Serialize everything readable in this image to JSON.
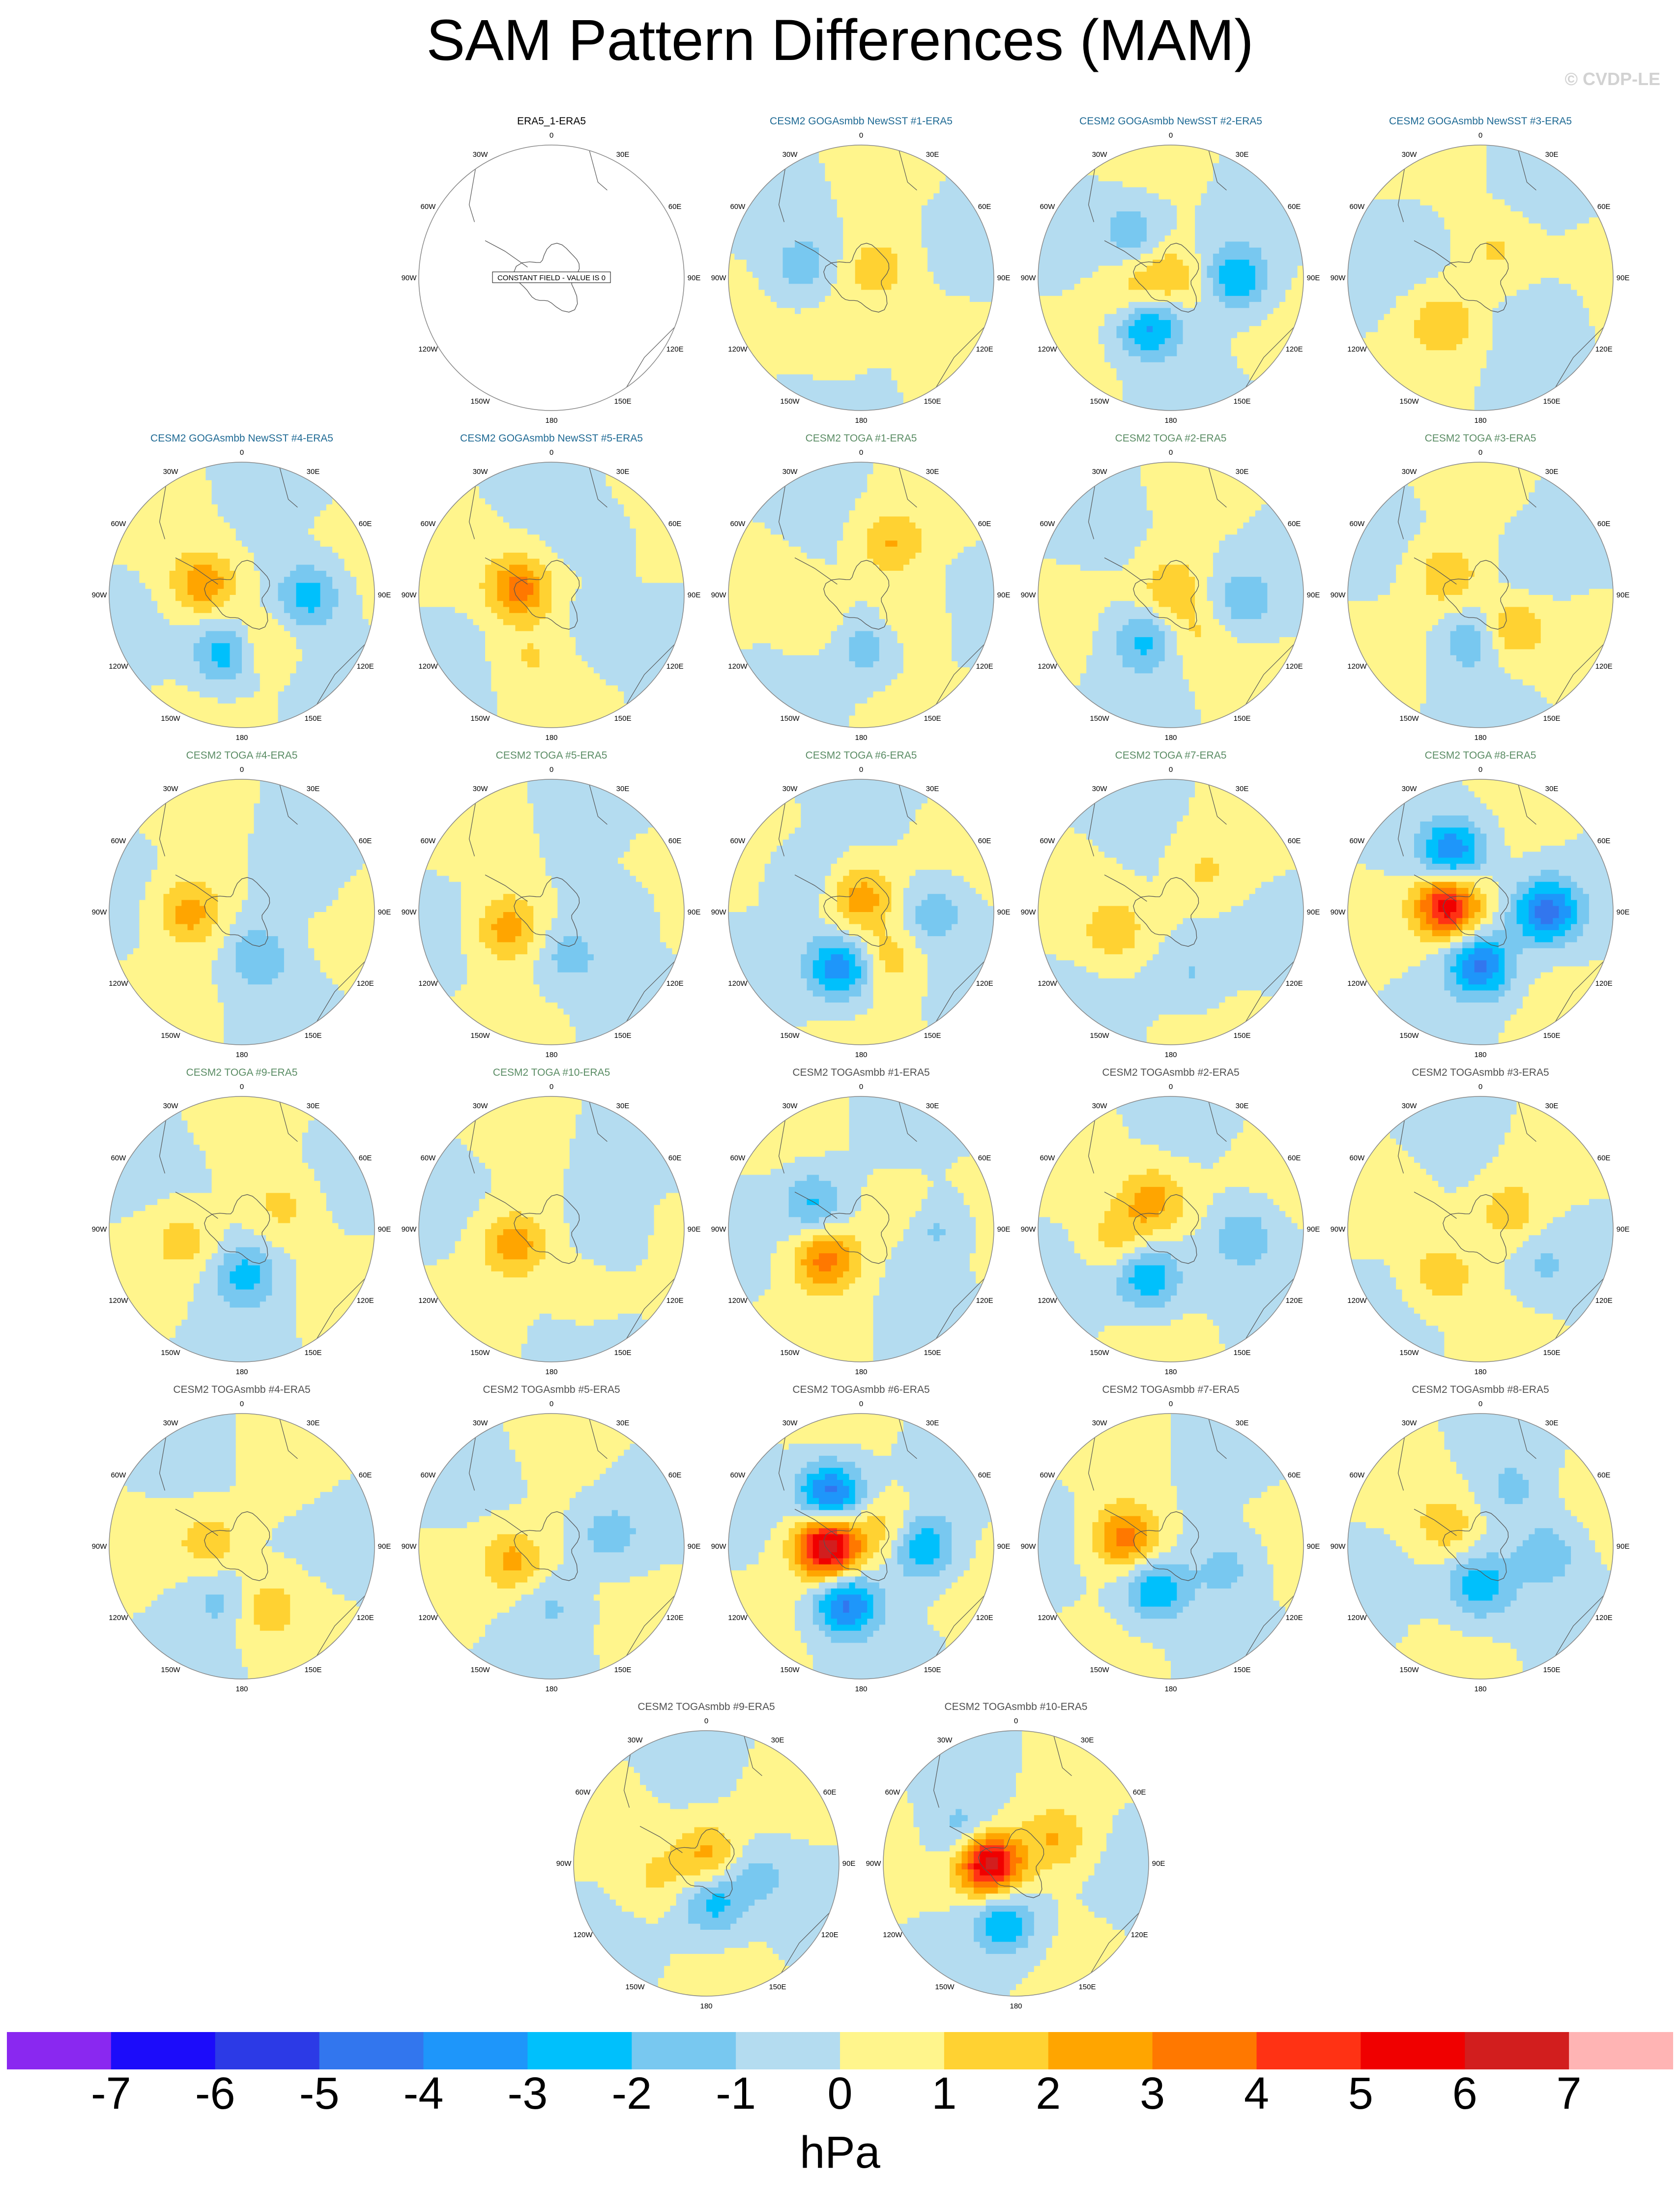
{
  "title": "SAM Pattern Differences (MAM)",
  "credit": "© CVDP-LE",
  "chart_data": {
    "type": "heatmap",
    "projection": "south-polar-stereographic",
    "field": "SAM pattern difference (model minus ERA5), MAM",
    "longitude_labels": [
      "0",
      "30E",
      "60E",
      "90E",
      "120E",
      "150E",
      "180",
      "150W",
      "120W",
      "90W",
      "60W",
      "30W"
    ],
    "panels": [
      {
        "title": "ERA5_1-ERA5",
        "note": "CONSTANT FIELD - VALUE IS 0",
        "color": "#000000",
        "blobs": []
      },
      {
        "title": "CESM2 GOGAsmbb NewSST #1-ERA5",
        "color": "#1f6a94",
        "blobs": [
          {
            "lon": 60,
            "r": 0.2,
            "v": 1.2
          },
          {
            "lon": 200,
            "r": 0.55,
            "v": 0.9
          },
          {
            "lon": 280,
            "r": 0.45,
            "v": -1.6
          },
          {
            "lon": 0,
            "r": 0.0,
            "v": 0.6
          }
        ]
      },
      {
        "title": "CESM2 GOGAsmbb NewSST #2-ERA5",
        "color": "#1f6a94",
        "blobs": [
          {
            "lon": 0,
            "r": 0.0,
            "v": 1.8
          },
          {
            "lon": 205,
            "r": 0.4,
            "v": -3.4
          },
          {
            "lon": 90,
            "r": 0.5,
            "v": -3.0
          },
          {
            "lon": 320,
            "r": 0.45,
            "v": -1.6
          },
          {
            "lon": 250,
            "r": 0.3,
            "v": 1.4
          }
        ]
      },
      {
        "title": "CESM2 GOGAsmbb NewSST #3-ERA5",
        "color": "#1f6a94",
        "blobs": [
          {
            "lon": 220,
            "r": 0.45,
            "v": 1.8
          },
          {
            "lon": 30,
            "r": 0.25,
            "v": 1.2
          },
          {
            "lon": 120,
            "r": 0.6,
            "v": -0.9
          },
          {
            "lon": 300,
            "r": 0.6,
            "v": -0.8
          }
        ]
      },
      {
        "title": "CESM2 GOGAsmbb NewSST #4-ERA5",
        "color": "#1f6a94",
        "blobs": [
          {
            "lon": 285,
            "r": 0.3,
            "v": 2.8
          },
          {
            "lon": 195,
            "r": 0.45,
            "v": -3.0
          },
          {
            "lon": 90,
            "r": 0.5,
            "v": -2.6
          },
          {
            "lon": 160,
            "r": 0.4,
            "v": 1.6
          }
        ]
      },
      {
        "title": "CESM2 GOGAsmbb NewSST #5-ERA5",
        "color": "#1f6a94",
        "blobs": [
          {
            "lon": 280,
            "r": 0.25,
            "v": 3.4
          },
          {
            "lon": 200,
            "r": 0.5,
            "v": 1.0
          },
          {
            "lon": 40,
            "r": 0.55,
            "v": -1.0
          },
          {
            "lon": 120,
            "r": 0.5,
            "v": -0.8
          }
        ]
      },
      {
        "title": "CESM2 TOGA #1-ERA5",
        "color": "#5a8c64",
        "blobs": [
          {
            "lon": 30,
            "r": 0.45,
            "v": 1.9
          },
          {
            "lon": 175,
            "r": 0.4,
            "v": -1.6
          },
          {
            "lon": 240,
            "r": 0.4,
            "v": 1.0
          },
          {
            "lon": 110,
            "r": 0.4,
            "v": 0.9
          }
        ]
      },
      {
        "title": "CESM2 TOGA #2-ERA5",
        "color": "#5a8c64",
        "blobs": [
          {
            "lon": 0,
            "r": 0.05,
            "v": 1.8
          },
          {
            "lon": 210,
            "r": 0.4,
            "v": -2.2
          },
          {
            "lon": 95,
            "r": 0.55,
            "v": -1.6
          },
          {
            "lon": 150,
            "r": 0.35,
            "v": 1.0
          }
        ]
      },
      {
        "title": "CESM2 TOGA #3-ERA5",
        "color": "#5a8c64",
        "blobs": [
          {
            "lon": 300,
            "r": 0.3,
            "v": 1.9
          },
          {
            "lon": 190,
            "r": 0.35,
            "v": -1.8
          },
          {
            "lon": 140,
            "r": 0.35,
            "v": 2.0
          },
          {
            "lon": 60,
            "r": 0.5,
            "v": -0.8
          }
        ]
      },
      {
        "title": "CESM2 TOGA #4-ERA5",
        "color": "#5a8c64",
        "blobs": [
          {
            "lon": 270,
            "r": 0.4,
            "v": 2.6
          },
          {
            "lon": 160,
            "r": 0.35,
            "v": -1.8
          },
          {
            "lon": 60,
            "r": 0.5,
            "v": -0.8
          }
        ]
      },
      {
        "title": "CESM2 TOGA #5-ERA5",
        "color": "#5a8c64",
        "blobs": [
          {
            "lon": 250,
            "r": 0.35,
            "v": 2.6
          },
          {
            "lon": 160,
            "r": 0.35,
            "v": -1.4
          },
          {
            "lon": 90,
            "r": 0.55,
            "v": -0.7
          }
        ]
      },
      {
        "title": "CESM2 TOGA #6-ERA5",
        "color": "#5a8c64",
        "blobs": [
          {
            "lon": 0,
            "r": 0.1,
            "v": 2.6
          },
          {
            "lon": 200,
            "r": 0.45,
            "v": -3.8
          },
          {
            "lon": 90,
            "r": 0.55,
            "v": -1.6
          },
          {
            "lon": 150,
            "r": 0.4,
            "v": 1.6
          },
          {
            "lon": 300,
            "r": 0.5,
            "v": -1.2
          }
        ]
      },
      {
        "title": "CESM2 TOGA #7-ERA5",
        "color": "#5a8c64",
        "blobs": [
          {
            "lon": 250,
            "r": 0.45,
            "v": 1.8
          },
          {
            "lon": 160,
            "r": 0.5,
            "v": -1.2
          },
          {
            "lon": 40,
            "r": 0.4,
            "v": 1.0
          }
        ]
      },
      {
        "title": "CESM2 TOGA #8-ERA5",
        "color": "#5a8c64",
        "blobs": [
          {
            "lon": 280,
            "r": 0.25,
            "v": 5.6
          },
          {
            "lon": 335,
            "r": 0.5,
            "v": -3.8
          },
          {
            "lon": 180,
            "r": 0.4,
            "v": -4.2
          },
          {
            "lon": 90,
            "r": 0.5,
            "v": -4.4
          }
        ]
      },
      {
        "title": "CESM2 TOGA #9-ERA5",
        "color": "#5a8c64",
        "blobs": [
          {
            "lon": 175,
            "r": 0.35,
            "v": -2.4
          },
          {
            "lon": 60,
            "r": 0.35,
            "v": 1.4
          },
          {
            "lon": 260,
            "r": 0.45,
            "v": 1.4
          }
        ]
      },
      {
        "title": "CESM2 TOGA #10-ERA5",
        "color": "#5a8c64",
        "blobs": [
          {
            "lon": 250,
            "r": 0.3,
            "v": 2.6
          },
          {
            "lon": 100,
            "r": 0.45,
            "v": -1.2
          },
          {
            "lon": 150,
            "r": 0.5,
            "v": 1.0
          }
        ]
      },
      {
        "title": "CESM2 TOGAsmbb #1-ERA5",
        "color": "#505050",
        "blobs": [
          {
            "lon": 230,
            "r": 0.35,
            "v": 3.4
          },
          {
            "lon": 300,
            "r": 0.4,
            "v": -2.2
          },
          {
            "lon": 90,
            "r": 0.55,
            "v": -1.4
          },
          {
            "lon": 60,
            "r": 0.3,
            "v": 1.0
          }
        ]
      },
      {
        "title": "CESM2 TOGAsmbb #2-ERA5",
        "color": "#505050",
        "blobs": [
          {
            "lon": 330,
            "r": 0.25,
            "v": 2.4
          },
          {
            "lon": 205,
            "r": 0.4,
            "v": -3.0
          },
          {
            "lon": 95,
            "r": 0.55,
            "v": -1.8
          },
          {
            "lon": 260,
            "r": 0.4,
            "v": 1.6
          }
        ]
      },
      {
        "title": "CESM2 TOGAsmbb #3-ERA5",
        "color": "#505050",
        "blobs": [
          {
            "lon": 220,
            "r": 0.45,
            "v": 1.9
          },
          {
            "lon": 60,
            "r": 0.25,
            "v": 1.6
          },
          {
            "lon": 120,
            "r": 0.55,
            "v": -1.0
          }
        ]
      },
      {
        "title": "CESM2 TOGAsmbb #4-ERA5",
        "color": "#505050",
        "blobs": [
          {
            "lon": 280,
            "r": 0.25,
            "v": 1.6
          },
          {
            "lon": 200,
            "r": 0.45,
            "v": -1.2
          },
          {
            "lon": 160,
            "r": 0.5,
            "v": 1.6
          }
        ]
      },
      {
        "title": "CESM2 TOGAsmbb #5-ERA5",
        "color": "#505050",
        "blobs": [
          {
            "lon": 250,
            "r": 0.3,
            "v": 2.2
          },
          {
            "lon": 180,
            "r": 0.45,
            "v": -1.0
          },
          {
            "lon": 80,
            "r": 0.45,
            "v": -1.4
          }
        ]
      },
      {
        "title": "CESM2 TOGAsmbb #6-ERA5",
        "color": "#505050",
        "blobs": [
          {
            "lon": 270,
            "r": 0.25,
            "v": 7.2
          },
          {
            "lon": 330,
            "r": 0.45,
            "v": -4.6
          },
          {
            "lon": 195,
            "r": 0.45,
            "v": -4.2
          },
          {
            "lon": 90,
            "r": 0.45,
            "v": -3.4
          },
          {
            "lon": 60,
            "r": 0.25,
            "v": 1.8
          }
        ]
      },
      {
        "title": "CESM2 TOGAsmbb #7-ERA5",
        "color": "#505050",
        "blobs": [
          {
            "lon": 280,
            "r": 0.35,
            "v": 3.6
          },
          {
            "lon": 200,
            "r": 0.35,
            "v": -3.0
          },
          {
            "lon": 110,
            "r": 0.45,
            "v": -1.4
          }
        ]
      },
      {
        "title": "CESM2 TOGAsmbb #8-ERA5",
        "color": "#505050",
        "blobs": [
          {
            "lon": 180,
            "r": 0.3,
            "v": -2.8
          },
          {
            "lon": 95,
            "r": 0.5,
            "v": -1.8
          },
          {
            "lon": 300,
            "r": 0.3,
            "v": 1.6
          },
          {
            "lon": 30,
            "r": 0.5,
            "v": -1.2
          }
        ]
      },
      {
        "title": "CESM2 TOGAsmbb #9-ERA5",
        "color": "#505050",
        "blobs": [
          {
            "lon": 0,
            "r": 0.05,
            "v": 2.4
          },
          {
            "lon": 170,
            "r": 0.3,
            "v": -2.6
          },
          {
            "lon": 100,
            "r": 0.4,
            "v": -1.2
          },
          {
            "lon": 250,
            "r": 0.4,
            "v": 1.2
          }
        ]
      },
      {
        "title": "CESM2 TOGAsmbb #10-ERA5",
        "color": "#505050",
        "blobs": [
          {
            "lon": 270,
            "r": 0.2,
            "v": 6.6
          },
          {
            "lon": 190,
            "r": 0.45,
            "v": -2.8
          },
          {
            "lon": 60,
            "r": 0.35,
            "v": 2.0
          },
          {
            "lon": 300,
            "r": 0.45,
            "v": -1.8
          }
        ]
      }
    ],
    "colorbar": {
      "levels": [
        -7,
        -6,
        -5,
        -4,
        -3,
        -2,
        -1,
        0,
        1,
        2,
        3,
        4,
        5,
        6,
        7
      ],
      "colors": [
        "#8a28f0",
        "#1c0cfa",
        "#2c3ae6",
        "#3276ee",
        "#1e96fa",
        "#00c0fc",
        "#78c8f0",
        "#b4dcf0",
        "#fff58c",
        "#ffd232",
        "#ffa500",
        "#ff7800",
        "#ff3214",
        "#f00000",
        "#d21e1e",
        "#ffb4b4"
      ],
      "tick_labels": [
        "-7",
        "-6",
        "-5",
        "-4",
        "-3",
        "-2",
        "-1",
        "0",
        "1",
        "2",
        "3",
        "4",
        "5",
        "6",
        "7"
      ],
      "units": "hPa"
    }
  }
}
